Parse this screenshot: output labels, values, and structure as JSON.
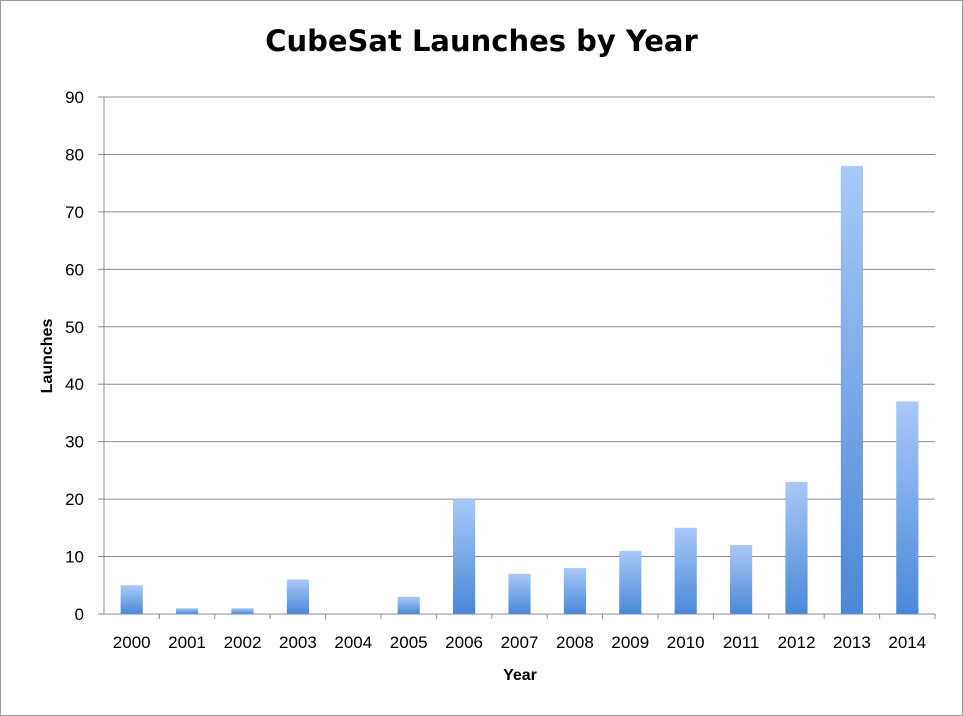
{
  "chart_data": {
    "type": "bar",
    "title": "CubeSat Launches by Year",
    "xlabel": "Year",
    "ylabel": "Launches",
    "categories": [
      "2000",
      "2001",
      "2002",
      "2003",
      "2004",
      "2005",
      "2006",
      "2007",
      "2008",
      "2009",
      "2010",
      "2011",
      "2012",
      "2013",
      "2014"
    ],
    "values": [
      5,
      1,
      1,
      6,
      0,
      3,
      20,
      7,
      8,
      11,
      15,
      12,
      23,
      78,
      37
    ],
    "ylim": [
      0,
      90
    ],
    "yticks": [
      0,
      10,
      20,
      30,
      40,
      50,
      60,
      70,
      80,
      90
    ],
    "grid": true,
    "legend": "none",
    "bar_color_top": "#a9c9f7",
    "bar_color_bottom": "#4a88d8",
    "grid_color": "#8c8c8c"
  }
}
